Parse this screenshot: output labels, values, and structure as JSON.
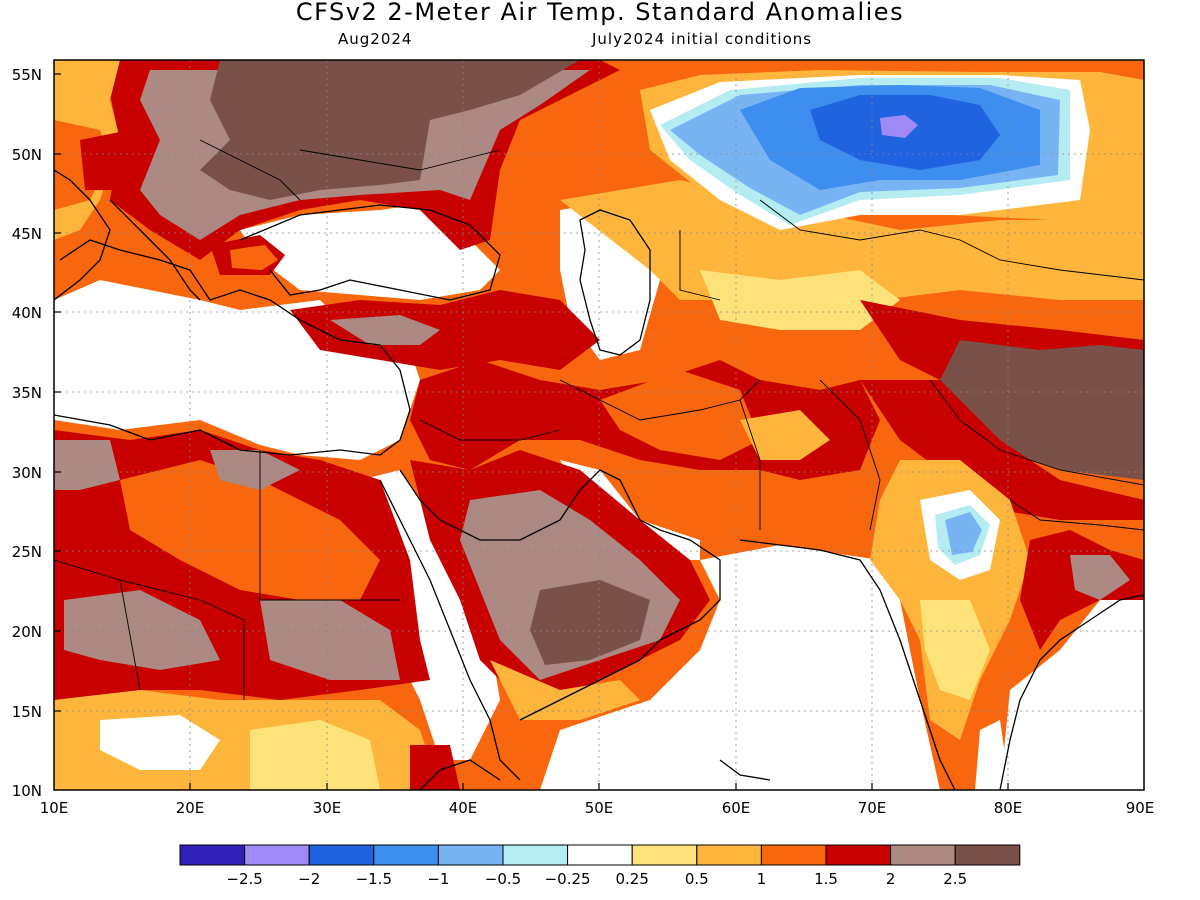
{
  "header": {
    "title": "CFSv2 2-Meter Air Temp. Standard Anomalies",
    "valid_month": "Aug2024",
    "init": "July2024 initial conditions"
  },
  "map": {
    "lon_labels": [
      "10E",
      "20E",
      "30E",
      "40E",
      "50E",
      "60E",
      "70E",
      "80E",
      "90E"
    ],
    "lat_labels": [
      "55N",
      "50N",
      "45N",
      "40N",
      "35N",
      "30N",
      "25N",
      "20N",
      "15N",
      "10N"
    ]
  },
  "legend": {
    "colors": [
      "#3020b8",
      "#a08af5",
      "#1f63e0",
      "#3e8ef0",
      "#78b4f3",
      "#b4ecf2",
      "#ffffff",
      "#fde27a",
      "#fdb53b",
      "#f8660e",
      "#c80000",
      "#ac8982",
      "#7a5148"
    ],
    "labels": [
      "−2.5",
      "−2",
      "−1.5",
      "−1",
      "−0.5",
      "−0.25",
      "0.25",
      "0.5",
      "1",
      "1.5",
      "2",
      "2.5"
    ]
  }
}
